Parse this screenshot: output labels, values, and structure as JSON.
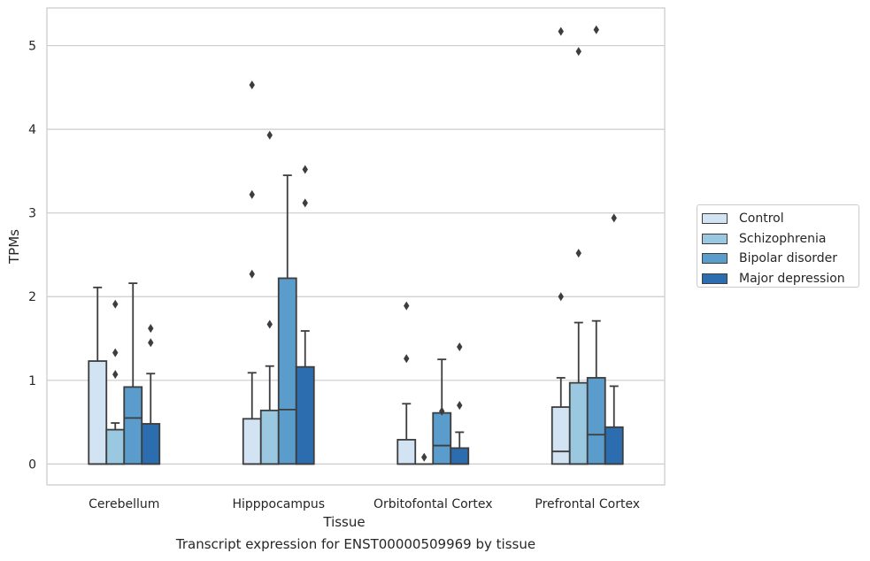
{
  "chart_data": {
    "type": "box",
    "xlabel": "Tissue",
    "ylabel": "TPMs",
    "ylim": [
      -0.25,
      5.45
    ],
    "yticks": [
      0,
      1,
      2,
      3,
      4,
      5
    ],
    "grid": "horizontal",
    "legend_position": "right",
    "categories": [
      "Cerebellum",
      "Hipppocampus",
      "Orbitofontal Cortex",
      "Prefrontal Cortex"
    ],
    "series": [
      {
        "name": "Control",
        "color": "#d2e3f3",
        "boxes": [
          {
            "whisker_low": 0,
            "q1": 0,
            "median": 0,
            "q3": 1.23,
            "whisker_high": 2.11,
            "outliers": []
          },
          {
            "whisker_low": 0,
            "q1": 0,
            "median": 0,
            "q3": 0.54,
            "whisker_high": 1.09,
            "outliers": [
              2.27,
              3.22,
              4.53
            ]
          },
          {
            "whisker_low": 0,
            "q1": 0,
            "median": 0,
            "q3": 0.29,
            "whisker_high": 0.72,
            "outliers": [
              1.26,
              1.89
            ]
          },
          {
            "whisker_low": 0,
            "q1": 0,
            "median": 0.15,
            "q3": 0.68,
            "whisker_high": 1.03,
            "outliers": [
              2.0,
              5.17
            ]
          }
        ]
      },
      {
        "name": "Schizophrenia",
        "color": "#9ac8e0",
        "boxes": [
          {
            "whisker_low": 0,
            "q1": 0,
            "median": 0,
            "q3": 0.41,
            "whisker_high": 0.49,
            "outliers": [
              1.07,
              1.33,
              1.91
            ]
          },
          {
            "whisker_low": 0,
            "q1": 0,
            "median": 0,
            "q3": 0.64,
            "whisker_high": 1.17,
            "outliers": [
              1.67,
              3.93
            ]
          },
          {
            "whisker_low": 0,
            "q1": 0,
            "median": 0,
            "q3": 0,
            "whisker_high": 0,
            "outliers": [
              0.08
            ]
          },
          {
            "whisker_low": 0,
            "q1": 0,
            "median": 0,
            "q3": 0.97,
            "whisker_high": 1.69,
            "outliers": [
              2.52,
              4.93
            ]
          }
        ]
      },
      {
        "name": "Bipolar disorder",
        "color": "#5a9ccc",
        "boxes": [
          {
            "whisker_low": 0,
            "q1": 0,
            "median": 0.55,
            "q3": 0.92,
            "whisker_high": 2.16,
            "outliers": []
          },
          {
            "whisker_low": 0,
            "q1": 0,
            "median": 0.65,
            "q3": 2.22,
            "whisker_high": 3.45,
            "outliers": []
          },
          {
            "whisker_low": 0,
            "q1": 0,
            "median": 0.22,
            "q3": 0.61,
            "whisker_high": 1.25,
            "outliers": [
              0.63
            ]
          },
          {
            "whisker_low": 0,
            "q1": 0,
            "median": 0.35,
            "q3": 1.03,
            "whisker_high": 1.71,
            "outliers": [
              5.19
            ]
          }
        ]
      },
      {
        "name": "Major depression",
        "color": "#2b6daf",
        "boxes": [
          {
            "whisker_low": 0,
            "q1": 0,
            "median": 0,
            "q3": 0.48,
            "whisker_high": 1.08,
            "outliers": [
              1.45,
              1.62
            ]
          },
          {
            "whisker_low": 0,
            "q1": 0,
            "median": 0,
            "q3": 1.16,
            "whisker_high": 1.59,
            "outliers": [
              3.12,
              3.52
            ]
          },
          {
            "whisker_low": 0,
            "q1": 0,
            "median": 0,
            "q3": 0.19,
            "whisker_high": 0.38,
            "outliers": [
              0.7,
              1.4
            ]
          },
          {
            "whisker_low": 0,
            "q1": 0,
            "median": 0,
            "q3": 0.44,
            "whisker_high": 0.93,
            "outliers": [
              2.94
            ]
          }
        ]
      }
    ]
  },
  "caption": "Transcript expression for ENST00000509969 by tissue"
}
